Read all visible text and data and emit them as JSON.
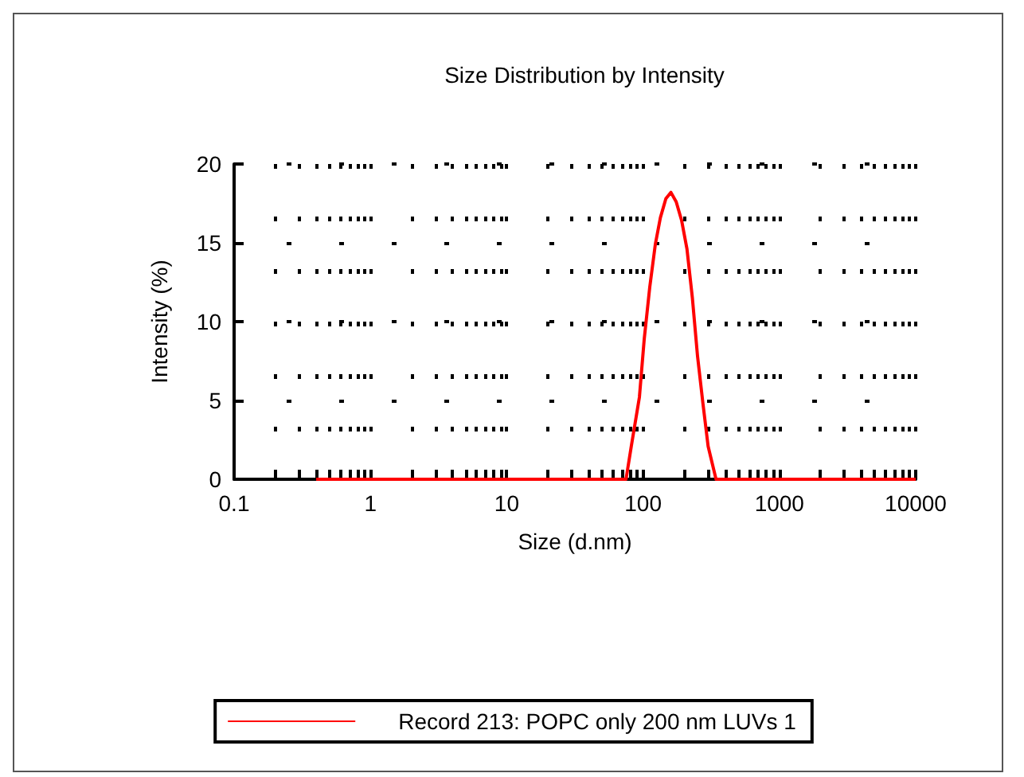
{
  "chart_data": {
    "type": "line",
    "title": "Size Distribution by Intensity",
    "xlabel": "Size (d.nm)",
    "ylabel": "Intensity (%)",
    "log": "x",
    "xlim": [
      0.1,
      10000
    ],
    "xticks": [
      0.1,
      1,
      10,
      100,
      1000,
      10000
    ],
    "ylim": [
      0,
      20
    ],
    "yticks": [
      0,
      5,
      10,
      15,
      20
    ],
    "grid": true,
    "legend": "bottom",
    "marker": "none",
    "line_style": "solid",
    "series": [
      {
        "name": "Record 213: POPC only 200 nm LUVs 1",
        "color": "#ff0000",
        "x": [
          0.4,
          75,
          82,
          94,
          102,
          112,
          123,
          134,
          147,
          160,
          175,
          192,
          210,
          230,
          251,
          275,
          300,
          343,
          10000
        ],
        "values": [
          0,
          0,
          2.1,
          5.2,
          8.9,
          12.2,
          14.9,
          16.6,
          17.8,
          18.2,
          17.6,
          16.4,
          14.6,
          11.5,
          7.8,
          4.8,
          2.1,
          0,
          0
        ]
      }
    ]
  }
}
